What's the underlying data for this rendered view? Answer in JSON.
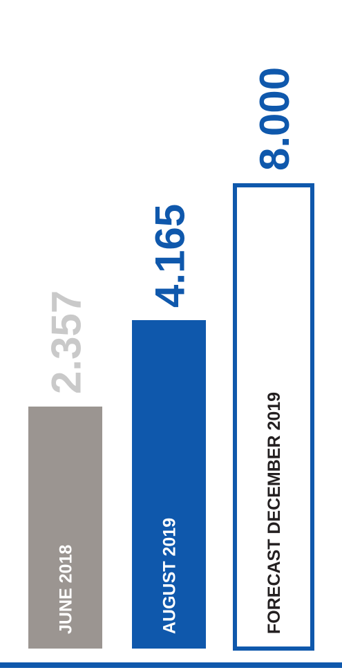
{
  "chart_data": {
    "type": "bar",
    "orientation": "vertical",
    "categories": [
      "JUNE 2018",
      "AUGUST 2019",
      "FORECAST DECEMBER 2019"
    ],
    "values": [
      2357,
      4165,
      8000
    ],
    "value_labels": [
      "2.357",
      "4.165",
      "8.000"
    ],
    "styles": [
      "filled",
      "filled",
      "outlined"
    ],
    "colors": {
      "june_bar": "#9b9591",
      "june_value": "#c9c9c9",
      "august": "#0f58ac",
      "forecast": "#0f58ac",
      "forecast_label": "#231f20",
      "label_on_bar": "#ffffff",
      "baseline": "#0f58ac"
    },
    "title": "",
    "xlabel": "",
    "ylabel": "",
    "ylim": [
      0,
      8000
    ],
    "grid": false,
    "legend": "none"
  }
}
